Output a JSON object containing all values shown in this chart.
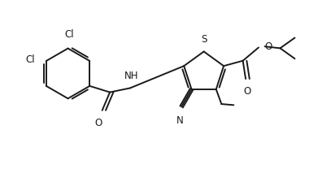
{
  "bg_color": "#ffffff",
  "line_color": "#1a1a1a",
  "line_width": 1.4,
  "font_size": 8.5,
  "fig_width": 4.07,
  "fig_height": 2.3,
  "dpi": 100,
  "xlim": [
    0,
    9.5
  ],
  "ylim": [
    0,
    5.0
  ]
}
